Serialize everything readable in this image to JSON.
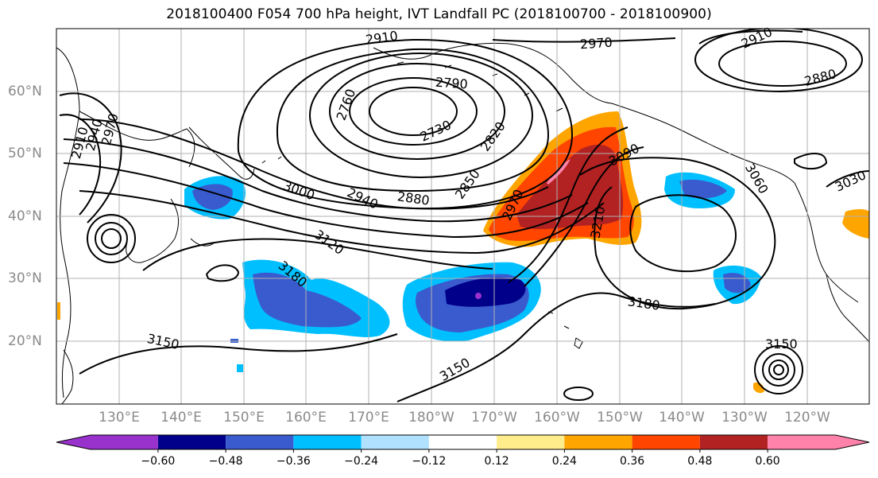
{
  "title": "2018100400 F054 700 hPa height, IVT Landfall PC (2018100700 - 2018100900)",
  "lat_labels": [
    "60°N",
    "50°N",
    "40°N",
    "30°N",
    "20°N"
  ],
  "lon_labels": [
    "130°E",
    "140°E",
    "150°E",
    "160°E",
    "170°E",
    "180°W",
    "170°W",
    "160°W",
    "150°W",
    "140°W",
    "130°W",
    "120°W"
  ],
  "contour_labels": [
    "2910",
    "2970",
    "2790",
    "2760",
    "2730",
    "2820",
    "2850",
    "2880",
    "2940",
    "3000",
    "3090",
    "2970",
    "3060",
    "3030",
    "2910",
    "2880",
    "3120",
    "3180",
    "3210",
    "3180",
    "3150",
    "3150",
    "3150",
    "2910",
    "2940",
    "2970"
  ],
  "colorbar": {
    "colors": [
      "#9932cc",
      "#00008b",
      "#3a5bcd",
      "#00bfff",
      "#b0e2ff",
      "#ffffff",
      "#ffec8b",
      "#ffa500",
      "#ff4500",
      "#b22222",
      "#ff82ab"
    ],
    "labels": [
      "−0.60",
      "−0.48",
      "−0.36",
      "−0.24",
      "−0.12",
      "0.12",
      "0.24",
      "0.36",
      "0.48",
      "0.60"
    ]
  }
}
